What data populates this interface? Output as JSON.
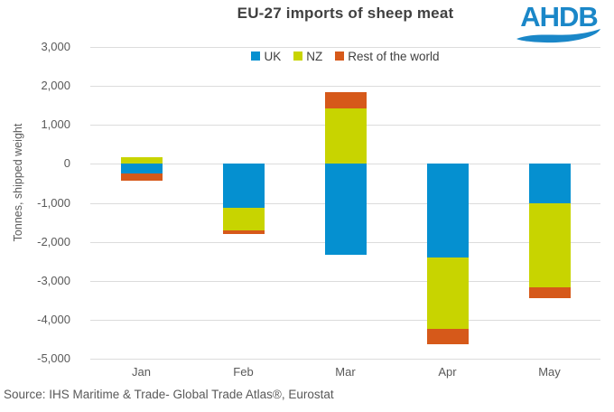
{
  "logo": {
    "text": "AHDB",
    "color": "#1A87C8"
  },
  "source": {
    "text": "Source: IHS Maritime & Trade- Global Trade Atlas®, Eurostat"
  },
  "chart_data": {
    "type": "bar",
    "stacked": true,
    "title": "EU-27 imports of sheep meat",
    "xlabel": "",
    "ylabel": "Tonnes, shipped weight",
    "categories": [
      "Jan",
      "Feb",
      "Mar",
      "Apr",
      "May"
    ],
    "series": [
      {
        "name": "UK",
        "color": "#0590D0",
        "values": [
          -250,
          -1130,
          -2340,
          -2400,
          -1020
        ]
      },
      {
        "name": "NZ",
        "color": "#C8D400",
        "values": [
          160,
          -580,
          1420,
          -1830,
          -2150
        ]
      },
      {
        "name": "Rest of the world",
        "color": "#D6591A",
        "values": [
          -190,
          -90,
          420,
          -390,
          -270
        ]
      }
    ],
    "ylim": [
      -5000,
      3000
    ],
    "ytick_step": 1000,
    "grid": true,
    "grid_color": "#DCDCDC",
    "axis_text_color": "#595959",
    "title_color": "#404040",
    "legend_position": "top-center-inside"
  }
}
